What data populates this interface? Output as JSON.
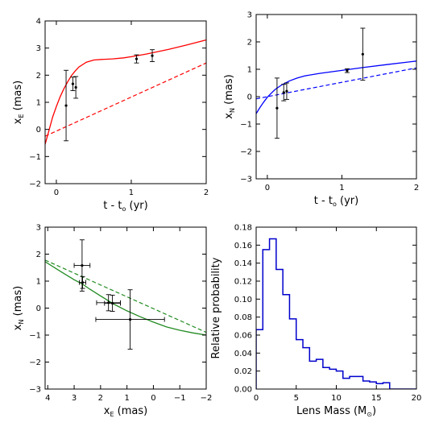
{
  "chart_data": [
    {
      "type": "line",
      "panel": "top-left",
      "xlabel": {
        "main": "t - t",
        "sub": "o",
        "unit": " (yr)"
      },
      "ylabel": {
        "main": "x",
        "sub": "E",
        "unit": " (mas)"
      },
      "xlim": [
        -0.15,
        2.0
      ],
      "ylim": [
        -2,
        4
      ],
      "xticks": [
        0,
        1,
        2
      ],
      "yticks": [
        -2,
        -1,
        0,
        1,
        2,
        3,
        4
      ],
      "color": "#ff0000",
      "solid": [
        [
          -0.15,
          -0.55
        ],
        [
          -0.1,
          -0.05
        ],
        [
          -0.05,
          0.45
        ],
        [
          0.0,
          0.85
        ],
        [
          0.05,
          1.2
        ],
        [
          0.1,
          1.5
        ],
        [
          0.15,
          1.75
        ],
        [
          0.2,
          1.98
        ],
        [
          0.25,
          2.15
        ],
        [
          0.3,
          2.3
        ],
        [
          0.4,
          2.48
        ],
        [
          0.5,
          2.56
        ],
        [
          0.6,
          2.58
        ],
        [
          0.75,
          2.6
        ],
        [
          0.9,
          2.64
        ],
        [
          1.0,
          2.68
        ],
        [
          1.2,
          2.78
        ],
        [
          1.5,
          2.95
        ],
        [
          1.75,
          3.12
        ],
        [
          2.0,
          3.3
        ]
      ],
      "dashed": [
        [
          -0.15,
          -0.25
        ],
        [
          2.0,
          2.45
        ]
      ],
      "points": [
        {
          "x": 0.13,
          "y": 0.88,
          "yerr": 1.3
        },
        {
          "x": 0.22,
          "y": 1.68,
          "yerr": 0.25
        },
        {
          "x": 0.26,
          "y": 1.55,
          "yerr": 0.4
        },
        {
          "x": 1.07,
          "y": 2.6,
          "yerr": 0.15
        },
        {
          "x": 1.28,
          "y": 2.72,
          "yerr": 0.22
        }
      ]
    },
    {
      "type": "line",
      "panel": "top-right",
      "xlabel": {
        "main": "t - t",
        "sub": "o",
        "unit": " (yr)"
      },
      "ylabel": {
        "main": "x",
        "sub": "N",
        "unit": " (mas)"
      },
      "xlim": [
        -0.15,
        2.0
      ],
      "ylim": [
        -3,
        3
      ],
      "xticks": [
        0,
        1,
        2
      ],
      "yticks": [
        -3,
        -2,
        -1,
        0,
        1,
        2,
        3
      ],
      "color": "#0000ff",
      "solid": [
        [
          -0.15,
          -0.62
        ],
        [
          -0.1,
          -0.4
        ],
        [
          -0.05,
          -0.2
        ],
        [
          0.0,
          -0.02
        ],
        [
          0.05,
          0.12
        ],
        [
          0.1,
          0.25
        ],
        [
          0.15,
          0.35
        ],
        [
          0.2,
          0.44
        ],
        [
          0.3,
          0.58
        ],
        [
          0.4,
          0.68
        ],
        [
          0.5,
          0.76
        ],
        [
          0.7,
          0.85
        ],
        [
          1.0,
          0.96
        ],
        [
          1.3,
          1.07
        ],
        [
          1.6,
          1.17
        ],
        [
          2.0,
          1.3
        ]
      ],
      "dashed": [
        [
          -0.15,
          -0.08
        ],
        [
          2.0,
          1.05
        ]
      ],
      "points": [
        {
          "x": 0.13,
          "y": -0.42,
          "yerr": 1.1
        },
        {
          "x": 0.22,
          "y": 0.15,
          "yerr": 0.3
        },
        {
          "x": 0.26,
          "y": 0.2,
          "yerr": 0.3
        },
        {
          "x": 1.07,
          "y": 0.95,
          "yerr": 0.07
        },
        {
          "x": 1.28,
          "y": 1.55,
          "yerr": 0.95
        }
      ]
    },
    {
      "type": "line",
      "panel": "bottom-left",
      "xlabel": {
        "main": "x",
        "sub": "E",
        "unit": "  (mas)"
      },
      "ylabel": {
        "main": "x",
        "sub": "N",
        "unit": " (mas)"
      },
      "xlim": [
        4.1,
        -2.0
      ],
      "ylim": [
        -3,
        3
      ],
      "xticks": [
        4,
        3,
        2,
        1,
        0,
        -1,
        -2
      ],
      "xticklabels": [
        "4",
        "3",
        "2",
        "1",
        "0",
        "−1",
        "−2"
      ],
      "yticks": [
        -3,
        -2,
        -1,
        0,
        1,
        2,
        3
      ],
      "color": "#228b22",
      "solid": [
        [
          4.1,
          1.72
        ],
        [
          3.5,
          1.35
        ],
        [
          3.0,
          1.05
        ],
        [
          2.7,
          0.9
        ],
        [
          2.4,
          0.7
        ],
        [
          2.0,
          0.45
        ],
        [
          1.5,
          0.15
        ],
        [
          1.0,
          -0.1
        ],
        [
          0.5,
          -0.32
        ],
        [
          0.0,
          -0.52
        ],
        [
          -0.5,
          -0.7
        ],
        [
          -1.0,
          -0.82
        ],
        [
          -1.5,
          -0.92
        ],
        [
          -2.0,
          -1.0
        ]
      ],
      "dashed": [
        [
          4.1,
          1.78
        ],
        [
          -2.0,
          -0.9
        ]
      ],
      "points": [
        {
          "x": 2.7,
          "y": 1.58,
          "xerr": 0.3,
          "yerr": 0.95
        },
        {
          "x": 2.68,
          "y": 0.95,
          "xerr": 0.12,
          "yerr": 0.22
        },
        {
          "x": 1.7,
          "y": 0.2,
          "xerr": 0.45,
          "yerr": 0.3
        },
        {
          "x": 1.55,
          "y": 0.18,
          "xerr": 0.3,
          "yerr": 0.3
        },
        {
          "x": 0.88,
          "y": -0.42,
          "xerr": 1.3,
          "yerr": 1.1
        }
      ]
    },
    {
      "type": "histogram",
      "panel": "bottom-right",
      "xlabel": {
        "main": "Lens Mass (M",
        "sub": "⊙",
        "unit": ")"
      },
      "ylabel": {
        "main": "Relative probability",
        "sub": "",
        "unit": ""
      },
      "xlim": [
        0,
        20
      ],
      "ylim": [
        0,
        0.18
      ],
      "xticks": [
        0,
        5,
        10,
        15,
        20
      ],
      "yticks": [
        0.0,
        0.02,
        0.04,
        0.06,
        0.08,
        0.1,
        0.12,
        0.14,
        0.16,
        0.18
      ],
      "yticklabels": [
        "0.00",
        "0.02",
        "0.04",
        "0.06",
        "0.08",
        "0.10",
        "0.12",
        "0.14",
        "0.16",
        "0.18"
      ],
      "color": "#0000cc",
      "bin_width": 0.833,
      "bin_edges_start": 0,
      "values": [
        0.066,
        0.155,
        0.167,
        0.133,
        0.105,
        0.078,
        0.055,
        0.046,
        0.031,
        0.033,
        0.024,
        0.022,
        0.02,
        0.012,
        0.014,
        0.014,
        0.009,
        0.008,
        0.006,
        0.007,
        0.0,
        0.0,
        0.0,
        0.0
      ]
    }
  ]
}
